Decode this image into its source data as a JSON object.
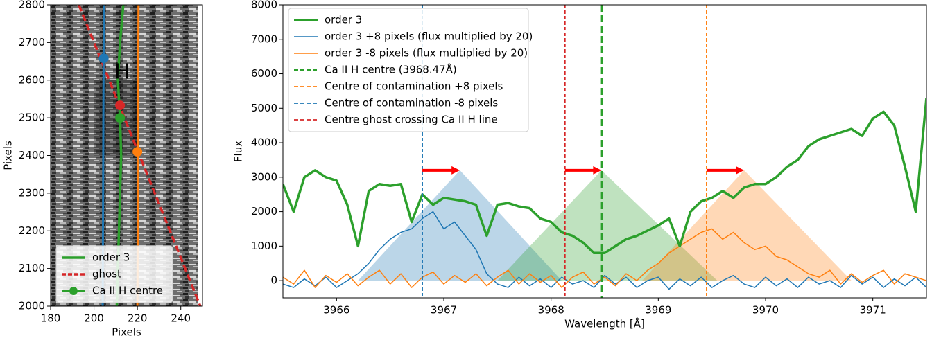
{
  "chart_data": [
    {
      "type": "image-line",
      "xlabel": "Pixels",
      "ylabel": "Pixels",
      "xlim": [
        180,
        250
      ],
      "xticks": [
        180,
        200,
        220,
        240
      ],
      "ylim": [
        2000,
        2800
      ],
      "yticks": [
        2000,
        2100,
        2200,
        2300,
        2400,
        2500,
        2600,
        2700,
        2800
      ],
      "highlight": {
        "x": [
          200,
          220
        ],
        "y": [
          2400,
          2600
        ]
      },
      "annotation": {
        "text": "H",
        "x": 213,
        "y": 2620
      },
      "legend": "lower left",
      "series": [
        {
          "name": "order 3",
          "color": "#2ca02c",
          "width": 3.5,
          "x": [
            213.5,
            212,
            211,
            212,
            212.5,
            212,
            211,
            210.5
          ],
          "values": [
            2800,
            2700,
            2600,
            2500,
            2400,
            2300,
            2100,
            2000
          ]
        },
        {
          "name": "ghost",
          "color": "#d62728",
          "width": 3.5,
          "dashed": true,
          "x": [
            193,
            249
          ],
          "values": [
            2800,
            2000
          ]
        },
        {
          "name": "Ca II H centre",
          "color": "#2ca02c",
          "marker": true,
          "x": [
            212
          ],
          "values": [
            2500
          ]
        },
        {
          "color": "#1f77b4",
          "width": 3,
          "x": [
            204.5,
            204
          ],
          "values": [
            2800,
            2000
          ]
        },
        {
          "color": "#ff7f0e",
          "width": 3,
          "x": [
            220.5,
            220
          ],
          "values": [
            2800,
            2000
          ]
        },
        {
          "color": "#1f77b4",
          "marker": true,
          "x": [
            204.5
          ],
          "values": [
            2658
          ]
        },
        {
          "color": "#d62728",
          "marker": true,
          "x": [
            212
          ],
          "values": [
            2533
          ]
        },
        {
          "color": "#ff7f0e",
          "marker": true,
          "x": [
            220
          ],
          "values": [
            2410
          ]
        }
      ]
    },
    {
      "type": "line",
      "xlabel": "Wavelength [Å]",
      "ylabel": "Flux",
      "xlim": [
        3965.5,
        3971.5
      ],
      "xticks": [
        3966,
        3967,
        3968,
        3969,
        3970,
        3971
      ],
      "ylim": [
        -500,
        8000
      ],
      "yticks": [
        0,
        1000,
        2000,
        3000,
        4000,
        5000,
        6000,
        7000,
        8000
      ],
      "legend": "upper left",
      "regions": [
        {
          "color": "#1f77b4",
          "x": [
            3966.2,
            3967.15,
            3968.1
          ],
          "y": [
            0,
            3200,
            0
          ]
        },
        {
          "color": "#2ca02c",
          "x": [
            3967.5,
            3968.47,
            3969.55
          ],
          "y": [
            0,
            3200,
            0
          ]
        },
        {
          "color": "#ff7f0e",
          "x": [
            3968.85,
            3969.8,
            3970.8
          ],
          "y": [
            0,
            3200,
            0
          ]
        }
      ],
      "arrows": [
        {
          "color": "#ff0000",
          "x": [
            3966.8,
            3967.15
          ],
          "y": 3200
        },
        {
          "color": "#ff0000",
          "x": [
            3968.13,
            3968.47
          ],
          "y": 3200
        },
        {
          "color": "#ff0000",
          "x": [
            3969.45,
            3969.8
          ],
          "y": 3200
        }
      ],
      "x": [
        3965.5,
        3965.6,
        3965.7,
        3965.8,
        3965.9,
        3966.0,
        3966.1,
        3966.2,
        3966.3,
        3966.4,
        3966.5,
        3966.6,
        3966.7,
        3966.8,
        3966.9,
        3967.0,
        3967.1,
        3967.2,
        3967.3,
        3967.4,
        3967.5,
        3967.6,
        3967.7,
        3967.8,
        3967.9,
        3968.0,
        3968.1,
        3968.2,
        3968.3,
        3968.4,
        3968.5,
        3968.6,
        3968.7,
        3968.8,
        3968.9,
        3969.0,
        3969.1,
        3969.2,
        3969.3,
        3969.4,
        3969.5,
        3969.6,
        3969.7,
        3969.8,
        3969.9,
        3970.0,
        3970.1,
        3970.2,
        3970.3,
        3970.4,
        3970.5,
        3970.6,
        3970.7,
        3970.8,
        3970.9,
        3971.0,
        3971.1,
        3971.2,
        3971.3,
        3971.4,
        3971.5
      ],
      "series": [
        {
          "name": "order 3",
          "color": "#2ca02c",
          "width": 3.5,
          "values": [
            2800,
            2000,
            3000,
            3200,
            3000,
            2900,
            2200,
            1000,
            2600,
            2800,
            2750,
            2800,
            1700,
            2500,
            2200,
            2400,
            2350,
            2300,
            2200,
            1300,
            2200,
            2250,
            2150,
            2100,
            1800,
            1700,
            1400,
            1300,
            1100,
            800,
            800,
            1000,
            1200,
            1300,
            1450,
            1600,
            1800,
            1000,
            2000,
            2300,
            2400,
            2600,
            2400,
            2700,
            2800,
            2800,
            3000,
            3300,
            3500,
            3900,
            4100,
            4200,
            4300,
            4400,
            4200,
            4700,
            4900,
            4500,
            3300,
            2000,
            5300
          ]
        },
        {
          "name": "order 3 +8 pixels (flux multiplied by 20)",
          "color": "#1f77b4",
          "width": 1.5,
          "values": [
            -100,
            -200,
            50,
            -150,
            100,
            -200,
            0,
            200,
            500,
            900,
            1200,
            1400,
            1500,
            1800,
            2000,
            1500,
            1700,
            1300,
            900,
            200,
            -100,
            -200,
            100,
            -150,
            50,
            -200,
            100,
            -100,
            0,
            -200,
            150,
            -100,
            100,
            -200,
            0,
            100,
            -250,
            50,
            -150,
            100,
            -200,
            0,
            150,
            -100,
            -200,
            100,
            -150,
            50,
            -200,
            100,
            -100,
            0,
            -200,
            150,
            -100,
            100,
            -200,
            50,
            -150,
            100,
            -200
          ]
        },
        {
          "name": "order 3 -8 pixels (flux multiplied by 20)",
          "color": "#ff7f0e",
          "width": 1.5,
          "values": [
            100,
            -100,
            300,
            -200,
            150,
            -50,
            200,
            -150,
            100,
            300,
            -100,
            200,
            -200,
            100,
            250,
            -100,
            150,
            -50,
            200,
            -150,
            100,
            300,
            -100,
            200,
            -50,
            150,
            -200,
            100,
            250,
            -100,
            100,
            -150,
            200,
            0,
            300,
            500,
            800,
            1000,
            1200,
            1400,
            1500,
            1200,
            1400,
            1100,
            900,
            1000,
            700,
            600,
            400,
            200,
            100,
            300,
            -100,
            200,
            -50,
            150,
            300,
            -100,
            200,
            100,
            0
          ]
        }
      ],
      "vlines": [
        {
          "name": "Ca II H centre (3968.47Å)",
          "color": "#2ca02c",
          "width": 3.5,
          "x": 3968.47
        },
        {
          "name": "Centre of contamination +8 pixels",
          "color": "#ff7f0e",
          "width": 1.8,
          "x": 3969.45
        },
        {
          "name": "Centre of contamination -8 pixels",
          "color": "#1f77b4",
          "width": 1.8,
          "x": 3966.8
        },
        {
          "name": "Centre ghost crossing Ca II H line",
          "color": "#d62728",
          "width": 1.8,
          "x": 3968.13
        }
      ]
    }
  ]
}
